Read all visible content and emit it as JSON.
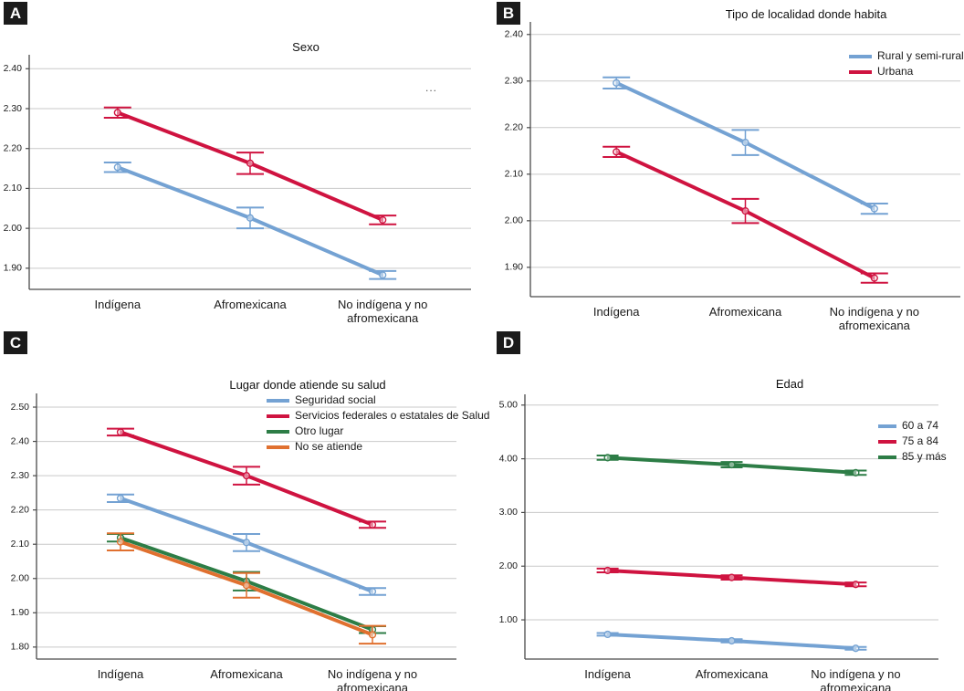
{
  "figure_title": "",
  "chart_data": [
    {
      "type": "line",
      "badge": "A",
      "title": "Sexo",
      "note": "...",
      "categories": [
        "Indígena",
        "Afromexicana",
        "No indígena y no\nafromexicana"
      ],
      "ylim": [
        1.847,
        2.435
      ],
      "yticks": [
        {
          "v": 2.4,
          "label": "2.40"
        },
        {
          "v": 2.3,
          "label": "2.30"
        },
        {
          "v": 2.2,
          "label": "2.20"
        },
        {
          "v": 2.1,
          "label": "2.10"
        },
        {
          "v": 2.0,
          "label": "2.00"
        },
        {
          "v": 1.9,
          "label": "1.90"
        }
      ],
      "grid": true,
      "legend_visible": false,
      "series": [
        {
          "name": "",
          "color": "#CF1340",
          "values": [
            2.29,
            2.163,
            2.021
          ],
          "errors": [
            0.013,
            0.027,
            0.011
          ]
        },
        {
          "name": "",
          "color": "#74A2D3",
          "values": [
            2.153,
            2.026,
            1.883
          ],
          "errors": [
            0.012,
            0.026,
            0.01
          ]
        }
      ]
    },
    {
      "type": "line",
      "badge": "B",
      "title": "Tipo de localidad donde habita",
      "note": null,
      "categories": [
        "Indígena",
        "Afromexicana",
        "No indígena y no\nafromexicana"
      ],
      "ylim": [
        1.837,
        2.427
      ],
      "yticks": [
        {
          "v": 2.4,
          "label": "2.40"
        },
        {
          "v": 2.3,
          "label": "2.30"
        },
        {
          "v": 2.2,
          "label": "2.20"
        },
        {
          "v": 2.1,
          "label": "2.10"
        },
        {
          "v": 2.0,
          "label": "2.00"
        },
        {
          "v": 1.9,
          "label": "1.90"
        }
      ],
      "grid": true,
      "legend_visible": true,
      "legend_position": "top-right",
      "series": [
        {
          "name": "Rural y semi-rural",
          "color": "#74A2D3",
          "values": [
            2.296,
            2.168,
            2.026
          ],
          "errors": [
            0.012,
            0.027,
            0.011
          ]
        },
        {
          "name": "Urbana",
          "color": "#CF1340",
          "values": [
            2.148,
            2.021,
            1.877
          ],
          "errors": [
            0.011,
            0.026,
            0.01
          ]
        }
      ]
    },
    {
      "type": "line",
      "badge": "C",
      "title": "Lugar donde atiende su salud",
      "note": null,
      "categories": [
        "Indígena",
        "Afromexicana",
        "No indígena y no\nafromexicana"
      ],
      "ylim": [
        1.765,
        2.54
      ],
      "yticks": [
        {
          "v": 2.5,
          "label": "2.50"
        },
        {
          "v": 2.4,
          "label": "2.40"
        },
        {
          "v": 2.3,
          "label": "2.30"
        },
        {
          "v": 2.2,
          "label": "2.20"
        },
        {
          "v": 2.1,
          "label": "2.10"
        },
        {
          "v": 2.0,
          "label": "2.00"
        },
        {
          "v": 1.9,
          "label": "1.90"
        },
        {
          "v": 1.8,
          "label": "1.80"
        }
      ],
      "grid": true,
      "legend_visible": true,
      "legend_position": "top-center",
      "series": [
        {
          "name": "Seguridad social",
          "color": "#74A2D3",
          "values": [
            2.234,
            2.105,
            1.962
          ],
          "errors": [
            0.011,
            0.025,
            0.01
          ]
        },
        {
          "name": "Servicios federales o estatales de Salud",
          "color": "#CF1340",
          "values": [
            2.427,
            2.3,
            2.157
          ],
          "errors": [
            0.01,
            0.026,
            0.009
          ]
        },
        {
          "name": "Otro lugar",
          "color": "#2D7D46",
          "values": [
            2.119,
            1.992,
            1.851
          ],
          "errors": [
            0.011,
            0.027,
            0.01
          ]
        },
        {
          "name": "No se atiende",
          "color": "#E0702F",
          "values": [
            2.107,
            1.98,
            1.836
          ],
          "errors": [
            0.025,
            0.036,
            0.026
          ]
        }
      ]
    },
    {
      "type": "line",
      "badge": "D",
      "title": "Edad",
      "note": null,
      "categories": [
        "Indígena",
        "Afromexicana",
        "No indígena y no\nafromexicana"
      ],
      "ylim": [
        0.27,
        5.2
      ],
      "yticks": [
        {
          "v": 5.0,
          "label": "5.00"
        },
        {
          "v": 4.0,
          "label": "4.00"
        },
        {
          "v": 3.0,
          "label": "3.00"
        },
        {
          "v": 2.0,
          "label": "2.00"
        },
        {
          "v": 1.0,
          "label": "1.00"
        }
      ],
      "grid": true,
      "legend_visible": true,
      "legend_position": "top-right",
      "series": [
        {
          "name": "60 a 74",
          "color": "#74A2D3",
          "values": [
            0.73,
            0.61,
            0.47
          ],
          "errors": [
            0.025,
            0.03,
            0.025
          ]
        },
        {
          "name": "75 a 84",
          "color": "#CF1340",
          "values": [
            1.92,
            1.79,
            1.66
          ],
          "errors": [
            0.035,
            0.04,
            0.035
          ]
        },
        {
          "name": "85 y más",
          "color": "#2D7D46",
          "values": [
            4.02,
            3.89,
            3.74
          ],
          "errors": [
            0.04,
            0.05,
            0.04
          ]
        }
      ]
    }
  ]
}
